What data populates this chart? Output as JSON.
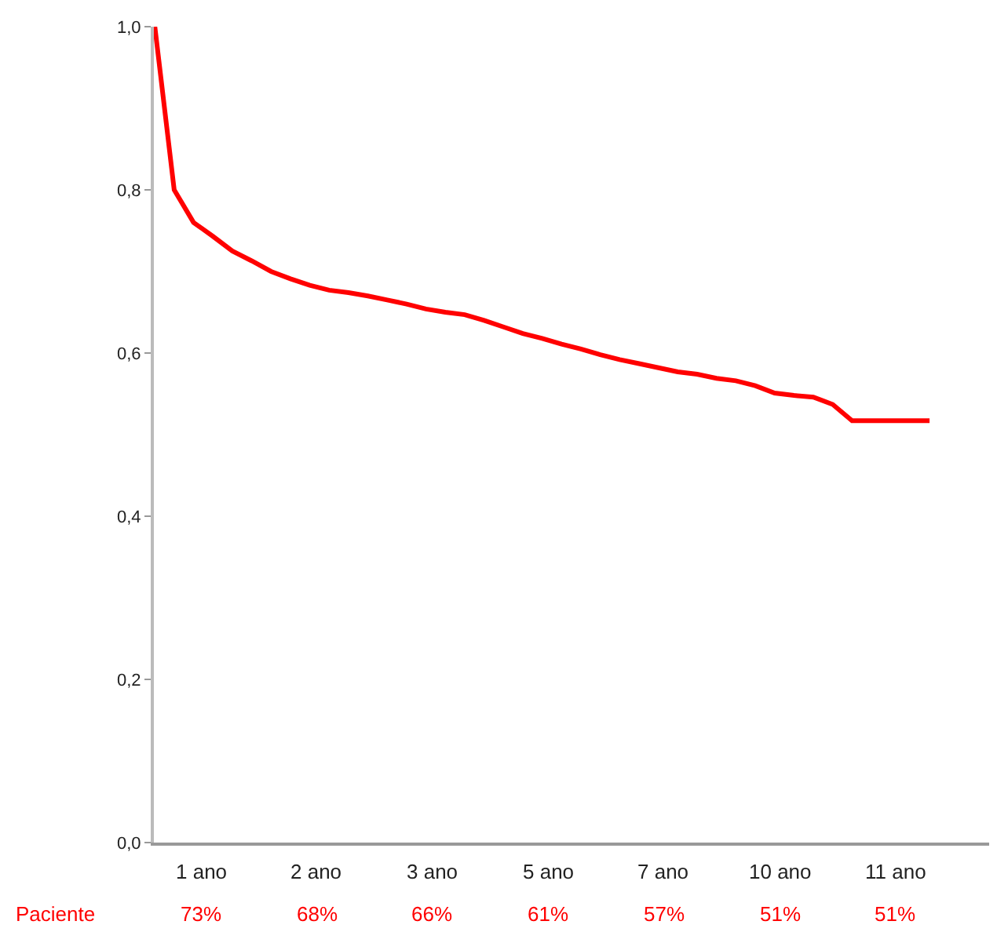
{
  "chart_data": {
    "type": "line",
    "color": "#ff0000",
    "line_style": "solid",
    "marker": "none",
    "grid": false,
    "tick_labels": "y",
    "categories": [
      null,
      null,
      null,
      null,
      null,
      null,
      null,
      null,
      null,
      null,
      null,
      null,
      null,
      null,
      null,
      null,
      null,
      null,
      null,
      null,
      null,
      null,
      null,
      null,
      null,
      null,
      null,
      null,
      null,
      null,
      null,
      null,
      null,
      null,
      null,
      null,
      null,
      null,
      null,
      null,
      null
    ],
    "values": [
      1.0,
      0.8,
      0.76,
      0.743,
      0.725,
      0.713,
      0.7,
      0.691,
      0.683,
      0.677,
      0.674,
      0.67,
      0.665,
      0.66,
      0.654,
      0.65,
      0.647,
      0.64,
      0.632,
      0.624,
      0.618,
      0.611,
      0.605,
      0.598,
      0.592,
      0.587,
      0.582,
      0.577,
      0.574,
      0.569,
      0.566,
      0.56,
      0.551,
      0.548,
      0.546,
      0.537,
      0.517,
      0.517,
      0.517,
      0.517,
      0.517
    ],
    "ylim": [
      0,
      1
    ],
    "yticks": [
      {
        "value": 0,
        "label": "0,0"
      },
      {
        "value": 0.2,
        "label": "0,2"
      },
      {
        "value": 0.4,
        "label": "0,4"
      },
      {
        "value": 0.6,
        "label": "0,6"
      },
      {
        "value": 0.8,
        "label": "0,8"
      },
      {
        "value": 1,
        "label": "1,0"
      }
    ],
    "annotations": [
      "1 ano",
      "2 ano",
      "3 ano",
      "5 ano",
      "7 ano",
      "10 ano",
      "11 ano",
      "Paciente",
      "73%",
      "68%",
      "66%",
      "61%",
      "57%",
      "51%",
      "51%"
    ]
  }
}
